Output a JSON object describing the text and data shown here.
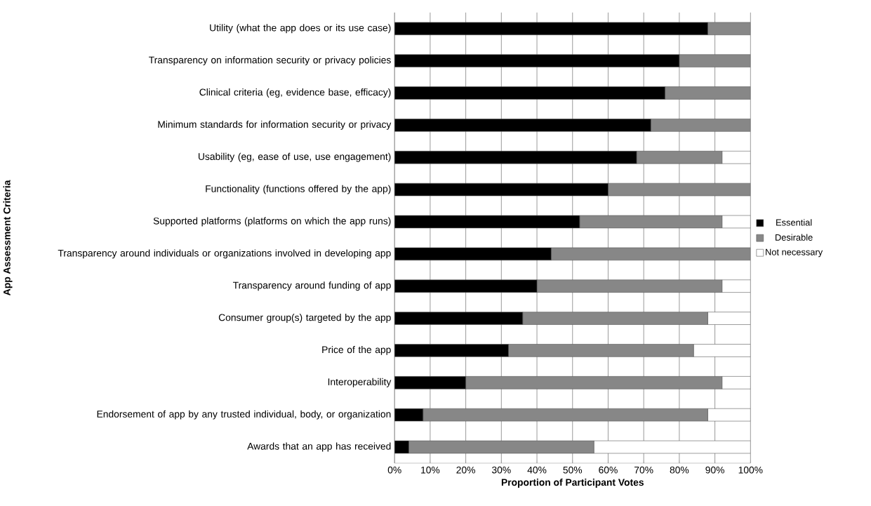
{
  "chart_data": {
    "type": "bar",
    "orientation": "horizontal",
    "stacked": true,
    "xlabel": "Proportion of Participant Votes",
    "ylabel": "App Assessment Criteria",
    "categories": [
      "Utility (what the app does or its use case)",
      "Transparency on information security or privacy policies",
      "Clinical criteria (eg, evidence base, efficacy)",
      "Minimum standards for information security or privacy",
      "Usability (eg, ease of use, use engagement)",
      "Functionality (functions offered by the app)",
      "Supported platforms (platforms on which the app runs)",
      "Transparency around individuals or organizations involved in developing app",
      "Transparency around funding of app",
      "Consumer group(s) targeted by the app",
      "Price of the app",
      "Interoperability",
      "Endorsement of app by any trusted individual, body, or organization",
      "Awards that an app has received"
    ],
    "series": [
      {
        "name": "Essential",
        "color": "#000000",
        "values": [
          88,
          80,
          76,
          72,
          68,
          60,
          52,
          44,
          40,
          36,
          32,
          20,
          8,
          4
        ]
      },
      {
        "name": "Desirable",
        "color": "#878787",
        "values": [
          12,
          20,
          24,
          28,
          24,
          40,
          40,
          56,
          52,
          52,
          52,
          72,
          80,
          52
        ]
      },
      {
        "name": "Not necessary",
        "color": "#ffffff",
        "values": [
          0,
          0,
          0,
          0,
          8,
          0,
          8,
          0,
          8,
          12,
          16,
          8,
          12,
          44
        ]
      }
    ],
    "xlim": [
      0,
      100
    ],
    "xticks": [
      {
        "value": 0,
        "label": "0%"
      },
      {
        "value": 10,
        "label": "10%"
      },
      {
        "value": 20,
        "label": "20%"
      },
      {
        "value": 30,
        "label": "30%"
      },
      {
        "value": 40,
        "label": "40%"
      },
      {
        "value": 50,
        "label": "50%"
      },
      {
        "value": 60,
        "label": "60%"
      },
      {
        "value": 70,
        "label": "70%"
      },
      {
        "value": 80,
        "label": "80%"
      },
      {
        "value": 90,
        "label": "90%"
      },
      {
        "value": 100,
        "label": "100%"
      }
    ],
    "grid": "x",
    "legend": "right"
  }
}
